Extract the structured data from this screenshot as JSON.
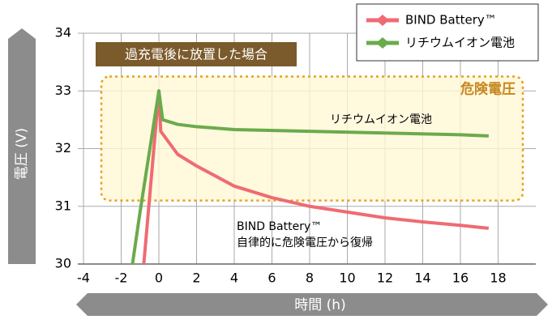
{
  "chart_data": {
    "type": "line",
    "title": "過充電後に放置した場合",
    "x_label": "時間 (h)",
    "y_label": "電圧 (V)",
    "xlim": [
      -4,
      20
    ],
    "xticks": [
      -4,
      -2,
      0,
      2,
      4,
      6,
      8,
      10,
      12,
      14,
      16,
      18
    ],
    "ylim": [
      30,
      34
    ],
    "yticks": [
      30,
      31,
      32,
      33,
      34
    ],
    "grid": true,
    "legend": "top-right",
    "danger_zone": {
      "label": "危険電圧",
      "ylim": [
        31.1,
        33.25
      ]
    },
    "annotations": [
      "リチウムイオン電池",
      "BIND Battery™",
      "自律的に危険電圧から復帰"
    ],
    "series": [
      {
        "name": "BIND Battery™",
        "color": "#ef6b72",
        "x": [
          -0.8,
          0,
          0.1,
          1,
          2,
          4,
          6,
          8,
          10,
          12,
          14,
          16,
          17.5
        ],
        "values": [
          30,
          33,
          32.3,
          31.9,
          31.7,
          31.35,
          31.15,
          31.0,
          30.9,
          30.8,
          30.73,
          30.67,
          30.62
        ]
      },
      {
        "name": "リチウムイオン電池",
        "color": "#6aab4c",
        "x": [
          -1.4,
          -1,
          0,
          0.2,
          1,
          2,
          4,
          8,
          12,
          16,
          17.5
        ],
        "values": [
          30,
          30.9,
          33,
          32.5,
          32.42,
          32.38,
          32.33,
          32.3,
          32.27,
          32.24,
          32.22
        ]
      }
    ]
  }
}
